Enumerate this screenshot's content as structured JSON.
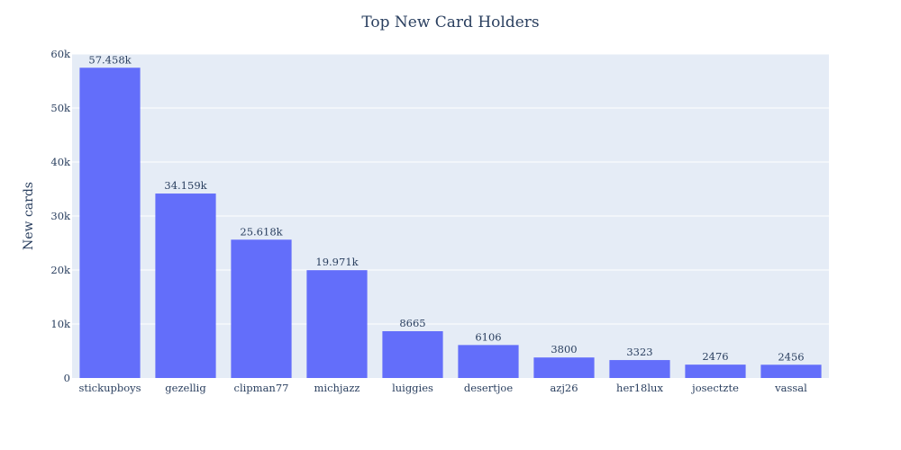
{
  "chart_data": {
    "type": "bar",
    "title": "Top New Card Holders",
    "xlabel": "",
    "ylabel": "New cards",
    "categories": [
      "stickupboys",
      "gezellig",
      "clipman77",
      "michjazz",
      "luiggies",
      "desertjoe",
      "azj26",
      "her18lux",
      "josectzte",
      "vassal"
    ],
    "values": [
      57458,
      34159,
      25618,
      19971,
      8665,
      6106,
      3800,
      3323,
      2476,
      2456
    ],
    "data_labels": [
      "57.458k",
      "34.159k",
      "25.618k",
      "19.971k",
      "8665",
      "6106",
      "3800",
      "3323",
      "2476",
      "2456"
    ],
    "ylim": [
      0,
      60000
    ],
    "yticks": [
      0,
      10000,
      20000,
      30000,
      40000,
      50000,
      60000
    ],
    "ytick_labels": [
      "0",
      "10k",
      "20k",
      "30k",
      "40k",
      "50k",
      "60k"
    ],
    "grid": true,
    "colors": {
      "bar": "#636efa",
      "plot_bg": "#e5ecf6",
      "text": "#2a3f5f"
    }
  }
}
